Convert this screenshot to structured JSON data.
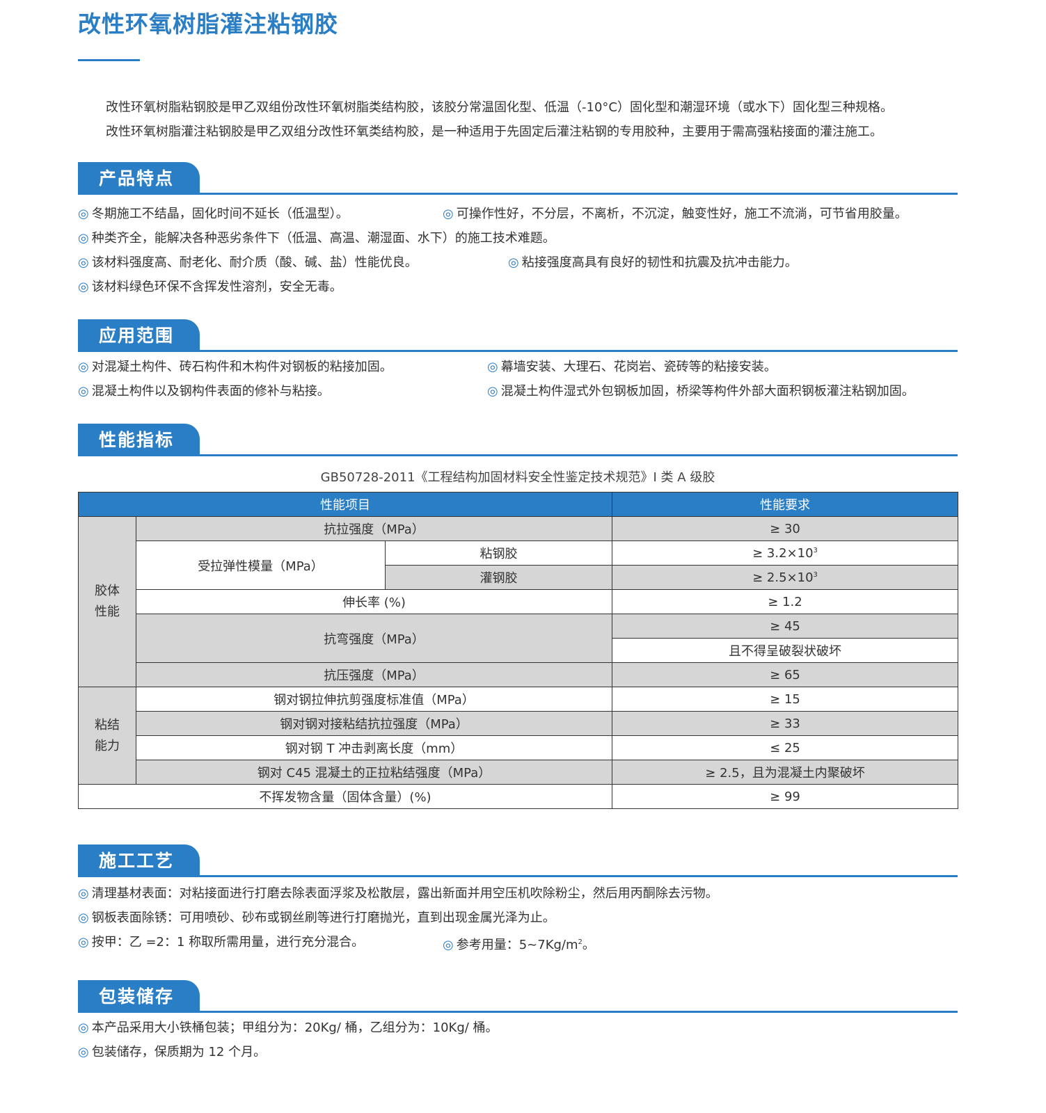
{
  "title": "改性环氧树脂灌注粘钢胶",
  "intro": [
    "改性环氧树脂粘钢胶是甲乙双组份改性环氧树脂类结构胶，该胶分常温固化型、低温（-10°C）固化型和潮湿环境（或水下）固化型三种规格。",
    "改性环氧树脂灌注粘钢胶是甲乙双组分改性环氧类结构胶，是一种适用于先固定后灌注粘钢的专用胶种，主要用于需高强粘接面的灌注施工。"
  ],
  "bullet": "◎",
  "sections": {
    "features": {
      "title": "产品特点",
      "items": [
        "冬期施工不结晶，固化时间不延长（低温型）。",
        "可操作性好，不分层，不离析，不沉淀，触变性好，施工不流淌，可节省用胶量。",
        "种类齐全，能解决各种恶劣条件下（低温、高温、潮湿面、水下）的施工技术难题。",
        "该材料强度高、耐老化、耐介质（酸、碱、盐）性能优良。",
        "粘接强度高具有良好的韧性和抗震及抗冲击能力。",
        "该材料绿色环保不含挥发性溶剂，安全无毒。"
      ]
    },
    "application": {
      "title": "应用范围",
      "items": [
        "对混凝土构件、砖石构件和木构件对钢板的粘接加固。",
        "幕墙安装、大理石、花岗岩、瓷砖等的粘接安装。",
        "混凝土构件以及钢构件表面的修补与粘接。",
        "混凝土构件湿式外包钢板加固，桥梁等构件外部大面积钢板灌注粘钢加固。"
      ]
    },
    "performance": {
      "title": "性能指标",
      "caption": "GB50728-2011《工程结构加固材料安全性鉴定技术规范》I 类 A 级胶"
    },
    "process": {
      "title": "施工工艺",
      "items": [
        "清理基材表面：对粘接面进行打磨去除表面浮浆及松散层，露出新面并用空压机吹除粉尘，然后用丙酮除去污物。",
        "钢板表面除锈：可用喷砂、砂布或钢丝刷等进行打磨抛光，直到出现金属光泽为止。",
        "按甲：乙 =2：1 称取所需用量，进行充分混合。",
        "参考用量：5~7Kg/m",
        "2",
        "。"
      ]
    },
    "storage": {
      "title": "包装储存",
      "items": [
        "本产品采用大小铁桶包装；甲组分为：20Kg/ 桶，乙组分为：10Kg/ 桶。",
        "包装储存，保质期为 12 个月。"
      ]
    }
  },
  "table": {
    "headers": [
      "性能项目",
      "性能要求"
    ],
    "groups": [
      "胶体性能",
      "粘结能力"
    ],
    "rows": {
      "tensile": {
        "item": "抗拉强度（MPa）",
        "req": "≥ 30"
      },
      "modulus": {
        "item": "受拉弹性模量（MPa）",
        "sub1": "粘钢胶",
        "req1": "≥ 3.2×10",
        "sub2": "灌钢胶",
        "req2": "≥ 2.5×10",
        "exp": "3"
      },
      "elong": {
        "item": "伸长率 (%)",
        "req": "≥ 1.2"
      },
      "bend": {
        "item": "抗弯强度（MPa）",
        "req1": "≥ 45",
        "req2": "且不得呈破裂状破坏"
      },
      "compress": {
        "item": "抗压强度（MPa）",
        "req": "≥ 65"
      },
      "shear": {
        "item": "钢对钢拉伸抗剪强度标准值（MPa）",
        "req": "≥ 15"
      },
      "butt": {
        "item": "钢对钢对接粘结抗拉强度（MPa）",
        "req": "≥ 33"
      },
      "peel": {
        "item": "钢对钢 T 冲击剥离长度（mm）",
        "req": "≤ 25"
      },
      "c45": {
        "item": "钢对 C45 混凝土的正拉粘结强度（MPa）",
        "req": "≥ 2.5，且为混凝土内聚破坏"
      },
      "solid": {
        "item": "不挥发物含量（固体含量）(%)",
        "req": "≥ 99"
      }
    }
  },
  "colors": {
    "accent": "#2a7ec6",
    "cell_gray": "#d6d6d6"
  }
}
